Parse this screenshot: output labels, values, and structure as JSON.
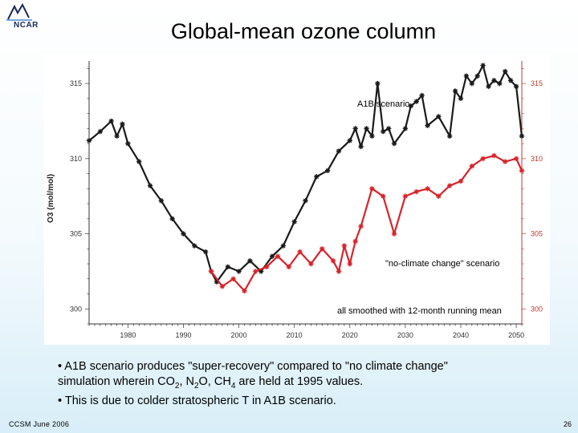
{
  "header": {
    "logo_text": "NCAR",
    "title": "Global-mean ozone column"
  },
  "chart_data": {
    "type": "line",
    "title": "",
    "xlabel": "",
    "ylabel": "O3 (mol/mol)",
    "xlim": [
      1973,
      2051
    ],
    "ylim": [
      299,
      316.5
    ],
    "x_ticks": [
      "1980",
      "1990",
      "2000",
      "2010",
      "2020",
      "2030",
      "2040",
      "2050"
    ],
    "y_ticks_left": [
      "300",
      "305",
      "310",
      "315"
    ],
    "y_ticks_right": [
      "300",
      "305",
      "310",
      "315"
    ],
    "marker": "asterisk",
    "series": [
      {
        "color": "#1a1a1a",
        "x": [
          1973,
          1975,
          1977,
          1978,
          1979,
          1980,
          1982,
          1984,
          1986,
          1988,
          1990,
          1992,
          1994,
          1995,
          1996,
          1998,
          2000,
          2002,
          2004,
          2006,
          2008,
          2010,
          2012,
          2014,
          2016,
          2018,
          2020,
          2021,
          2022,
          2023,
          2024,
          2025,
          2026,
          2027,
          2028,
          2030,
          2031,
          2032,
          2033,
          2034,
          2036,
          2038,
          2039,
          2040,
          2041,
          2042,
          2043,
          2044,
          2045,
          2046,
          2047,
          2048,
          2049,
          2050,
          2051
        ],
        "values": [
          311.2,
          311.8,
          312.5,
          311.5,
          312.3,
          311.0,
          309.8,
          308.2,
          307.2,
          306.0,
          305.0,
          304.2,
          303.8,
          302.5,
          301.8,
          302.8,
          302.5,
          303.2,
          302.5,
          303.5,
          304.2,
          305.8,
          307.2,
          308.8,
          309.2,
          310.5,
          311.2,
          312.0,
          310.8,
          312.0,
          311.5,
          315.0,
          311.8,
          312.0,
          311.0,
          312.0,
          313.5,
          313.8,
          314.2,
          312.2,
          312.8,
          311.5,
          314.5,
          314.0,
          315.5,
          315.0,
          315.5,
          316.2,
          314.8,
          315.2,
          315.0,
          315.8,
          315.2,
          314.8,
          311.5
        ]
      },
      {
        "color": "#d8232a",
        "x": [
          1995,
          1997,
          1999,
          2001,
          2003,
          2005,
          2007,
          2009,
          2011,
          2013,
          2015,
          2017,
          2018,
          2019,
          2020,
          2021,
          2022,
          2024,
          2026,
          2028,
          2030,
          2032,
          2034,
          2036,
          2038,
          2040,
          2042,
          2044,
          2046,
          2048,
          2050,
          2051
        ],
        "values": [
          302.5,
          301.5,
          302.0,
          301.2,
          302.5,
          302.8,
          303.5,
          302.8,
          303.8,
          303.0,
          304.0,
          303.2,
          302.5,
          304.2,
          303.0,
          304.5,
          305.5,
          308.0,
          307.5,
          305.0,
          307.5,
          307.8,
          308.0,
          307.5,
          308.2,
          308.5,
          309.5,
          310.0,
          310.2,
          309.8,
          310.0,
          309.2
        ]
      }
    ],
    "annotations": {
      "a1b": "A1B scenario",
      "noclimate": "\"no-climate change\" scenario",
      "smoothing": "all smoothed with 12-month running mean"
    }
  },
  "bullets": {
    "line1": "• A1B scenario produces \"super-recovery\" compared to \"no climate change\"",
    "line2_pre": "simulation wherein CO",
    "sub_co2": "2",
    "line2_mid1": ", N",
    "sub_n2o": "2",
    "line2_mid2": "O, CH",
    "sub_ch4": "4",
    "line2_post": " are held at 1995 values.",
    "line3": "• This is due to colder stratospheric T in A1B scenario."
  },
  "footer": {
    "left": "CCSM June 2006",
    "right": "26"
  }
}
